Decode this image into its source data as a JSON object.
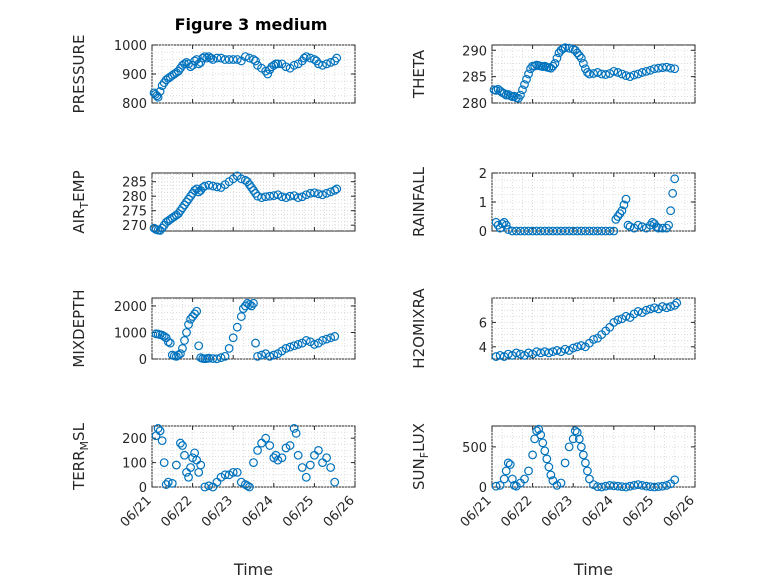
{
  "figure_title": "Figure 3 medium",
  "colors": {
    "marker": "#0072BD",
    "axis": "#262626",
    "grid": "#d4d4d4"
  },
  "chart_data": [
    {
      "type": "scatter",
      "ylabel": "PRESSURE",
      "xlabel": "",
      "title": "Figure 3 medium",
      "ylim": [
        800,
        1000
      ],
      "yticks": [
        800,
        900,
        1000
      ],
      "xlim": [
        0,
        5
      ],
      "xticks": [
        "06/21",
        "06/22",
        "06/23",
        "06/24",
        "06/25",
        "06/26"
      ],
      "show_xticklabels": false,
      "grid": true,
      "x": [
        0.05,
        0.08,
        0.12,
        0.15,
        0.2,
        0.25,
        0.3,
        0.35,
        0.4,
        0.45,
        0.5,
        0.55,
        0.6,
        0.65,
        0.7,
        0.75,
        0.8,
        0.85,
        0.9,
        0.95,
        1.0,
        1.05,
        1.1,
        1.15,
        1.2,
        1.25,
        1.3,
        1.35,
        1.4,
        1.45,
        1.5,
        1.6,
        1.7,
        1.8,
        1.9,
        2.0,
        2.1,
        2.2,
        2.3,
        2.4,
        2.5,
        2.55,
        2.6,
        2.7,
        2.8,
        2.85,
        2.9,
        2.95,
        3.0,
        3.05,
        3.1,
        3.2,
        3.3,
        3.4,
        3.5,
        3.6,
        3.7,
        3.75,
        3.8,
        3.9,
        4.0,
        4.05,
        4.1,
        4.2,
        4.3,
        4.4,
        4.5,
        4.55
      ],
      "y": [
        835,
        830,
        825,
        820,
        840,
        860,
        870,
        880,
        885,
        890,
        895,
        900,
        905,
        910,
        920,
        930,
        935,
        940,
        935,
        925,
        930,
        945,
        950,
        935,
        940,
        955,
        960,
        955,
        960,
        955,
        950,
        955,
        955,
        950,
        950,
        950,
        950,
        945,
        960,
        955,
        950,
        945,
        930,
        920,
        910,
        900,
        915,
        925,
        930,
        935,
        935,
        935,
        925,
        920,
        930,
        935,
        945,
        955,
        960,
        955,
        950,
        945,
        935,
        930,
        935,
        940,
        945,
        955
      ]
    },
    {
      "type": "scatter",
      "ylabel": "THETA",
      "xlabel": "",
      "ylim": [
        280,
        291
      ],
      "yticks": [
        280,
        285,
        290
      ],
      "xlim": [
        0,
        5
      ],
      "xticks": [
        "06/21",
        "06/22",
        "06/23",
        "06/24",
        "06/25",
        "06/26"
      ],
      "show_xticklabels": false,
      "grid": true,
      "x": [
        0.05,
        0.1,
        0.15,
        0.2,
        0.25,
        0.3,
        0.35,
        0.4,
        0.45,
        0.5,
        0.55,
        0.6,
        0.65,
        0.7,
        0.75,
        0.8,
        0.85,
        0.9,
        0.95,
        1.0,
        1.05,
        1.1,
        1.15,
        1.2,
        1.25,
        1.3,
        1.35,
        1.4,
        1.45,
        1.5,
        1.55,
        1.6,
        1.65,
        1.7,
        1.75,
        1.8,
        1.9,
        2.0,
        2.05,
        2.1,
        2.15,
        2.2,
        2.25,
        2.3,
        2.35,
        2.4,
        2.5,
        2.6,
        2.7,
        2.8,
        2.9,
        3.0,
        3.1,
        3.2,
        3.3,
        3.4,
        3.5,
        3.6,
        3.7,
        3.8,
        3.9,
        4.0,
        4.1,
        4.2,
        4.3,
        4.4,
        4.5
      ],
      "y": [
        282.5,
        282.4,
        282.6,
        282.3,
        282.0,
        281.8,
        281.5,
        281.6,
        281.4,
        281.2,
        281.3,
        281.0,
        280.9,
        281.5,
        282.5,
        283.5,
        284.5,
        285.5,
        286.5,
        287.0,
        287.0,
        287.2,
        287.1,
        287.0,
        286.9,
        287.0,
        286.8,
        286.7,
        286.6,
        287.0,
        287.5,
        288.5,
        289.5,
        290.0,
        290.3,
        290.5,
        290.4,
        290.2,
        290.0,
        289.5,
        289.0,
        288.5,
        287.5,
        286.5,
        285.8,
        285.5,
        285.6,
        285.8,
        285.5,
        285.4,
        285.6,
        286.0,
        285.8,
        285.5,
        285.2,
        285.0,
        285.3,
        285.5,
        285.8,
        286.0,
        286.2,
        286.5,
        286.6,
        286.7,
        286.8,
        286.6,
        286.5
      ]
    },
    {
      "type": "scatter",
      "ylabel": "AIR_TEMP",
      "xlabel": "",
      "ylim": [
        268,
        288
      ],
      "yticks": [
        270,
        275,
        280,
        285
      ],
      "xlim": [
        0,
        5
      ],
      "xticks": [
        "06/21",
        "06/22",
        "06/23",
        "06/24",
        "06/25",
        "06/26"
      ],
      "show_xticklabels": false,
      "grid": true,
      "x": [
        0.05,
        0.1,
        0.15,
        0.2,
        0.25,
        0.3,
        0.35,
        0.4,
        0.45,
        0.5,
        0.55,
        0.6,
        0.65,
        0.7,
        0.75,
        0.8,
        0.85,
        0.9,
        0.95,
        1.0,
        1.05,
        1.1,
        1.15,
        1.2,
        1.25,
        1.3,
        1.4,
        1.5,
        1.6,
        1.7,
        1.8,
        1.9,
        2.0,
        2.1,
        2.2,
        2.3,
        2.35,
        2.4,
        2.45,
        2.5,
        2.55,
        2.6,
        2.7,
        2.8,
        2.9,
        3.0,
        3.1,
        3.2,
        3.3,
        3.4,
        3.5,
        3.6,
        3.7,
        3.8,
        3.9,
        4.0,
        4.1,
        4.2,
        4.3,
        4.4,
        4.5,
        4.55
      ],
      "y": [
        269,
        268.5,
        268.3,
        268.2,
        269,
        270,
        271,
        271.5,
        272,
        272.5,
        273,
        273.5,
        274,
        275,
        276,
        277,
        278,
        279,
        280,
        281,
        282,
        282.5,
        281.5,
        282,
        283,
        283.5,
        283.8,
        283.5,
        283.2,
        283,
        284,
        285,
        286,
        287,
        286,
        285.5,
        285,
        284,
        283,
        282,
        281,
        280,
        279.5,
        279.8,
        280,
        280.2,
        280.5,
        279.8,
        279.5,
        280,
        280.2,
        279.5,
        279.8,
        280.5,
        281,
        281.2,
        280.8,
        280.5,
        281,
        281.5,
        282,
        282.5
      ]
    },
    {
      "type": "scatter",
      "ylabel": "RAINFALL",
      "xlabel": "",
      "ylim": [
        0,
        2
      ],
      "yticks": [
        0,
        1,
        2
      ],
      "xlim": [
        0,
        5
      ],
      "xticks": [
        "06/21",
        "06/22",
        "06/23",
        "06/24",
        "06/25",
        "06/26"
      ],
      "show_xticklabels": false,
      "grid": true,
      "x": [
        0.1,
        0.15,
        0.2,
        0.25,
        0.3,
        0.35,
        0.4,
        0.5,
        0.6,
        0.7,
        0.8,
        0.9,
        1.0,
        1.1,
        1.2,
        1.3,
        1.4,
        1.5,
        1.6,
        1.7,
        1.8,
        1.9,
        2.0,
        2.1,
        2.2,
        2.3,
        2.4,
        2.5,
        2.6,
        2.7,
        2.8,
        2.9,
        3.0,
        3.05,
        3.1,
        3.15,
        3.2,
        3.25,
        3.3,
        3.35,
        3.4,
        3.5,
        3.6,
        3.7,
        3.8,
        3.9,
        3.95,
        4.0,
        4.05,
        4.1,
        4.2,
        4.3,
        4.35,
        4.4,
        4.45,
        4.5
      ],
      "y": [
        0.3,
        0.2,
        0.1,
        0.25,
        0.3,
        0.2,
        0.05,
        0,
        0,
        0,
        0,
        0,
        0,
        0,
        0,
        0,
        0,
        0,
        0,
        0,
        0,
        0,
        0,
        0,
        0,
        0,
        0,
        0,
        0,
        0,
        0,
        0,
        0,
        0.4,
        0.5,
        0.6,
        0.7,
        0.9,
        1.1,
        0.2,
        0.15,
        0.1,
        0.2,
        0.15,
        0.1,
        0.2,
        0.3,
        0.25,
        0.15,
        0.1,
        0.1,
        0.1,
        0.2,
        0.7,
        1.3,
        1.8
      ]
    },
    {
      "type": "scatter",
      "ylabel": "MIXDEPTH",
      "xlabel": "",
      "ylim": [
        0,
        2300
      ],
      "yticks": [
        0,
        1000,
        2000
      ],
      "xlim": [
        0,
        5
      ],
      "xticks": [
        "06/21",
        "06/22",
        "06/23",
        "06/24",
        "06/25",
        "06/26"
      ],
      "show_xticklabels": false,
      "grid": true,
      "x": [
        0.1,
        0.15,
        0.2,
        0.25,
        0.3,
        0.35,
        0.4,
        0.45,
        0.5,
        0.55,
        0.6,
        0.65,
        0.7,
        0.75,
        0.8,
        0.85,
        0.9,
        0.95,
        1.0,
        1.05,
        1.1,
        1.15,
        1.2,
        1.25,
        1.3,
        1.35,
        1.4,
        1.5,
        1.6,
        1.7,
        1.8,
        1.9,
        2.0,
        2.1,
        2.2,
        2.25,
        2.3,
        2.35,
        2.4,
        2.45,
        2.5,
        2.55,
        2.6,
        2.7,
        2.8,
        2.9,
        3.0,
        3.1,
        3.2,
        3.3,
        3.4,
        3.5,
        3.6,
        3.7,
        3.8,
        3.9,
        4.0,
        4.1,
        4.2,
        4.3,
        4.4,
        4.5
      ],
      "y": [
        950,
        940,
        920,
        900,
        850,
        800,
        650,
        600,
        150,
        120,
        100,
        150,
        200,
        400,
        700,
        1000,
        1300,
        1500,
        1600,
        1700,
        1800,
        500,
        50,
        20,
        10,
        20,
        30,
        20,
        10,
        50,
        100,
        400,
        800,
        1200,
        1600,
        1900,
        2000,
        2100,
        2050,
        2000,
        2100,
        600,
        100,
        150,
        200,
        100,
        150,
        200,
        300,
        400,
        450,
        500,
        550,
        600,
        700,
        650,
        550,
        600,
        700,
        750,
        800,
        850
      ]
    },
    {
      "type": "scatter",
      "ylabel": "H2OMIXRA",
      "xlabel": "",
      "ylim": [
        3,
        8
      ],
      "yticks": [
        4,
        6
      ],
      "xlim": [
        0,
        5
      ],
      "xticks": [
        "06/21",
        "06/22",
        "06/23",
        "06/24",
        "06/25",
        "06/26"
      ],
      "show_xticklabels": false,
      "grid": true,
      "x": [
        0.1,
        0.2,
        0.3,
        0.4,
        0.5,
        0.6,
        0.7,
        0.8,
        0.9,
        1.0,
        1.1,
        1.2,
        1.3,
        1.4,
        1.5,
        1.6,
        1.7,
        1.8,
        1.9,
        2.0,
        2.1,
        2.2,
        2.3,
        2.4,
        2.5,
        2.6,
        2.7,
        2.8,
        2.9,
        3.0,
        3.1,
        3.2,
        3.3,
        3.4,
        3.5,
        3.6,
        3.7,
        3.8,
        3.9,
        4.0,
        4.1,
        4.2,
        4.3,
        4.4,
        4.5,
        4.55
      ],
      "y": [
        3.2,
        3.3,
        3.2,
        3.4,
        3.3,
        3.5,
        3.4,
        3.3,
        3.5,
        3.4,
        3.6,
        3.5,
        3.6,
        3.5,
        3.6,
        3.7,
        3.6,
        3.8,
        3.7,
        3.9,
        4.0,
        4.1,
        4.0,
        4.3,
        4.6,
        4.7,
        5.0,
        5.3,
        5.6,
        6.0,
        6.2,
        6.3,
        6.5,
        6.4,
        6.7,
        6.9,
        6.8,
        7.0,
        7.1,
        7.2,
        7.1,
        7.3,
        7.2,
        7.3,
        7.4,
        7.6
      ]
    },
    {
      "type": "scatter",
      "ylabel": "TERR_MSL",
      "xlabel": "Time",
      "ylim": [
        0,
        250
      ],
      "yticks": [
        0,
        100,
        200
      ],
      "xlim": [
        0,
        5
      ],
      "xticks": [
        "06/21",
        "06/22",
        "06/23",
        "06/24",
        "06/25",
        "06/26"
      ],
      "show_xticklabels": true,
      "grid": true,
      "x": [
        0.1,
        0.15,
        0.2,
        0.25,
        0.3,
        0.35,
        0.4,
        0.5,
        0.6,
        0.7,
        0.75,
        0.8,
        0.85,
        0.9,
        0.95,
        1.0,
        1.05,
        1.1,
        1.15,
        1.2,
        1.3,
        1.4,
        1.5,
        1.6,
        1.7,
        1.8,
        1.9,
        2.0,
        2.1,
        2.2,
        2.3,
        2.35,
        2.4,
        2.5,
        2.6,
        2.7,
        2.8,
        2.9,
        3.0,
        3.05,
        3.1,
        3.2,
        3.3,
        3.4,
        3.5,
        3.55,
        3.6,
        3.7,
        3.8,
        3.9,
        4.0,
        4.1,
        4.2,
        4.3,
        4.4,
        4.5
      ],
      "y": [
        210,
        240,
        230,
        190,
        100,
        10,
        20,
        15,
        90,
        180,
        170,
        130,
        60,
        40,
        80,
        120,
        140,
        110,
        60,
        90,
        0,
        5,
        0,
        20,
        40,
        50,
        50,
        60,
        60,
        20,
        10,
        5,
        0,
        100,
        150,
        180,
        200,
        170,
        120,
        130,
        110,
        120,
        160,
        170,
        240,
        220,
        130,
        80,
        40,
        90,
        130,
        150,
        100,
        120,
        80,
        20
      ]
    },
    {
      "type": "scatter",
      "ylabel": "SUN_FLUX",
      "xlabel": "Time",
      "ylim": [
        0,
        760
      ],
      "yticks": [
        0,
        500
      ],
      "xlim": [
        0,
        5
      ],
      "xticks": [
        "06/21",
        "06/22",
        "06/23",
        "06/24",
        "06/25",
        "06/26"
      ],
      "show_xticklabels": true,
      "grid": true,
      "x": [
        0.1,
        0.2,
        0.3,
        0.35,
        0.4,
        0.45,
        0.5,
        0.55,
        0.6,
        0.7,
        0.8,
        0.9,
        1.0,
        1.05,
        1.1,
        1.15,
        1.2,
        1.25,
        1.3,
        1.35,
        1.4,
        1.45,
        1.5,
        1.6,
        1.7,
        1.8,
        1.9,
        2.0,
        2.05,
        2.1,
        2.15,
        2.2,
        2.25,
        2.3,
        2.35,
        2.4,
        2.5,
        2.6,
        2.7,
        2.8,
        2.9,
        3.0,
        3.1,
        3.2,
        3.3,
        3.4,
        3.5,
        3.6,
        3.7,
        3.8,
        3.9,
        4.0,
        4.1,
        4.2,
        4.3,
        4.4,
        4.5
      ],
      "y": [
        10,
        20,
        100,
        200,
        300,
        280,
        100,
        20,
        10,
        50,
        100,
        200,
        400,
        600,
        700,
        720,
        650,
        550,
        450,
        350,
        250,
        150,
        80,
        20,
        50,
        300,
        500,
        600,
        700,
        680,
        600,
        500,
        400,
        300,
        200,
        100,
        30,
        5,
        0,
        10,
        20,
        15,
        10,
        5,
        0,
        10,
        20,
        30,
        20,
        10,
        5,
        0,
        5,
        10,
        20,
        40,
        90
      ]
    }
  ]
}
